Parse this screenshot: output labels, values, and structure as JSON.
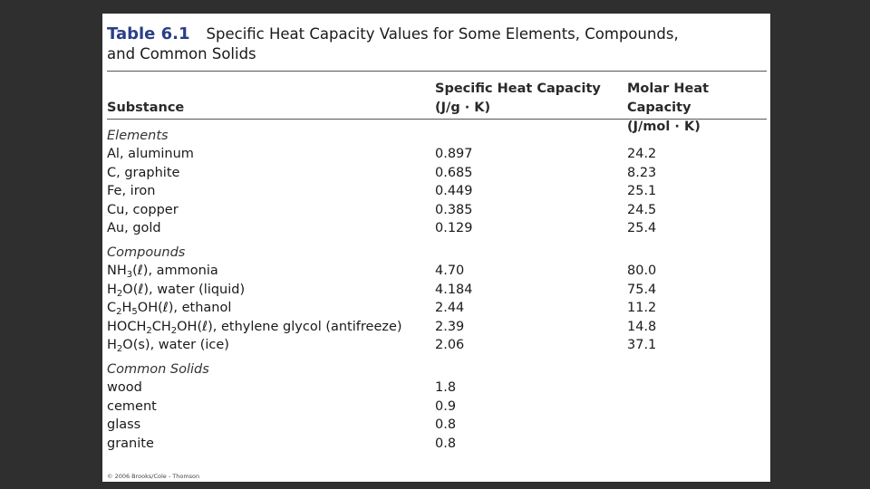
{
  "caption": {
    "table_number": "Table 6.1",
    "title_line1": "Specific Heat Capacity Values for Some Elements, Compounds,",
    "title_line2": "and Common Solids"
  },
  "headers": {
    "col1": "Substance",
    "col2_line1": "Specific Heat Capacity",
    "col2_line2": "(J/g · K)",
    "col3_line1": "Molar Heat Capacity",
    "col3_line2": "(J/mol · K)"
  },
  "categories": {
    "elements": "Elements",
    "compounds": "Compounds",
    "solids": "Common Solids"
  },
  "elements": [
    {
      "substance": "Al, aluminum",
      "specific": "0.897",
      "molar": "24.2"
    },
    {
      "substance": "C, graphite",
      "specific": "0.685",
      "molar": "8.23"
    },
    {
      "substance": "Fe, iron",
      "specific": "0.449",
      "molar": "25.1"
    },
    {
      "substance": "Cu, copper",
      "specific": "0.385",
      "molar": "24.5"
    },
    {
      "substance": "Au, gold",
      "specific": "0.129",
      "molar": "25.4"
    }
  ],
  "compounds": [
    {
      "formula": [
        "NH",
        "3",
        "(ℓ)"
      ],
      "name": ", ammonia",
      "specific": "4.70",
      "molar": "80.0"
    },
    {
      "formula": [
        "H",
        "2",
        "O(ℓ)"
      ],
      "name": ", water (liquid)",
      "specific": "4.184",
      "molar": "75.4"
    },
    {
      "formula": [
        "C",
        "2",
        "H",
        "5",
        "OH(ℓ)"
      ],
      "name": ", ethanol",
      "specific": "2.44",
      "molar": "11.2"
    },
    {
      "formula": [
        "HOCH",
        "2",
        "CH",
        "2",
        "OH(ℓ)"
      ],
      "name": ", ethylene glycol (antifreeze)",
      "specific": "2.39",
      "molar": "14.8"
    },
    {
      "formula": [
        "H",
        "2",
        "O(s)"
      ],
      "name": ", water (ice)",
      "specific": "2.06",
      "molar": "37.1"
    }
  ],
  "solids": [
    {
      "substance": "wood",
      "specific": "1.8"
    },
    {
      "substance": "cement",
      "specific": "0.9"
    },
    {
      "substance": "glass",
      "specific": "0.8"
    },
    {
      "substance": "granite",
      "specific": "0.8"
    }
  ],
  "credit": "© 2006 Brooks/Cole - Thomson"
}
